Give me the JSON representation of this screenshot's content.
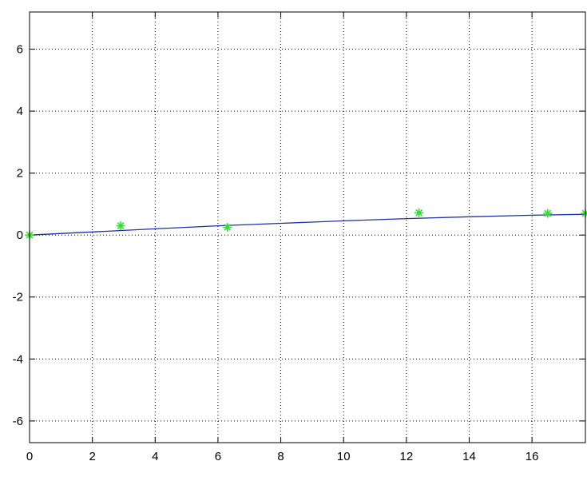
{
  "chart_data": {
    "type": "line",
    "title": "",
    "xlabel": "",
    "ylabel": "",
    "xlim": [
      0,
      17.7
    ],
    "ylim": [
      -6.7,
      7.2
    ],
    "grid": true,
    "x_ticks": [
      0,
      2,
      4,
      6,
      8,
      10,
      12,
      14,
      16
    ],
    "y_ticks": [
      -6,
      -4,
      -2,
      0,
      2,
      4,
      6
    ],
    "x_tick_labels": [
      "0",
      "2",
      "4",
      "6",
      "8",
      "10",
      "12",
      "14",
      "16"
    ],
    "y_tick_labels": [
      "-6",
      "-4",
      "-2",
      "0",
      "2",
      "4",
      "6"
    ],
    "series": [
      {
        "style": "line",
        "color": "#1f2f9f",
        "x": [
          0,
          2,
          4,
          6,
          8,
          10,
          12,
          14,
          16,
          17.7
        ],
        "y": [
          0,
          0.1,
          0.2,
          0.3,
          0.38,
          0.46,
          0.53,
          0.59,
          0.64,
          0.67
        ]
      },
      {
        "style": "markers",
        "marker": "star",
        "color": "#33dd33",
        "x": [
          0,
          2.9,
          6.3,
          12.4,
          16.5,
          17.7
        ],
        "y": [
          0,
          0.3,
          0.25,
          0.72,
          0.7,
          0.7
        ]
      }
    ]
  }
}
